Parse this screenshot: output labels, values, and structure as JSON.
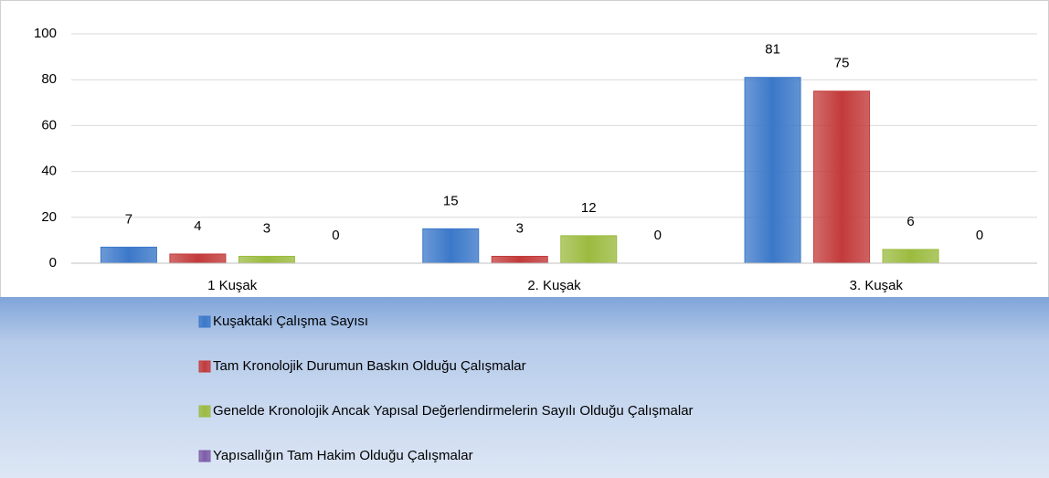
{
  "chart_data": {
    "type": "bar",
    "categories": [
      "1 Kuşak",
      "2. Kuşak",
      "3. Kuşak"
    ],
    "series": [
      {
        "name": "Kuşaktaki Çalışma Sayısı",
        "color": "#3b78c9",
        "values": [
          7,
          15,
          81
        ]
      },
      {
        "name": "Tam Kronolojik Durumun Baskın  Olduğu Çalışmalar",
        "color": "#c33a3a",
        "values": [
          4,
          3,
          75
        ]
      },
      {
        "name": "Genelde Kronolojik Ancak Yapısal Değerlendirmelerin Sayılı Olduğu Çalışmalar",
        "color": "#9bbb3f",
        "values": [
          3,
          12,
          6
        ]
      },
      {
        "name": "Yapısallığın Tam Hakim Olduğu Çalışmalar",
        "color": "#7e5ca8",
        "values": [
          0,
          0,
          0
        ]
      }
    ],
    "ylim": [
      0,
      100
    ],
    "yticks": [
      0,
      20,
      40,
      60,
      80,
      100
    ],
    "grid": true,
    "legend": "bottom"
  }
}
